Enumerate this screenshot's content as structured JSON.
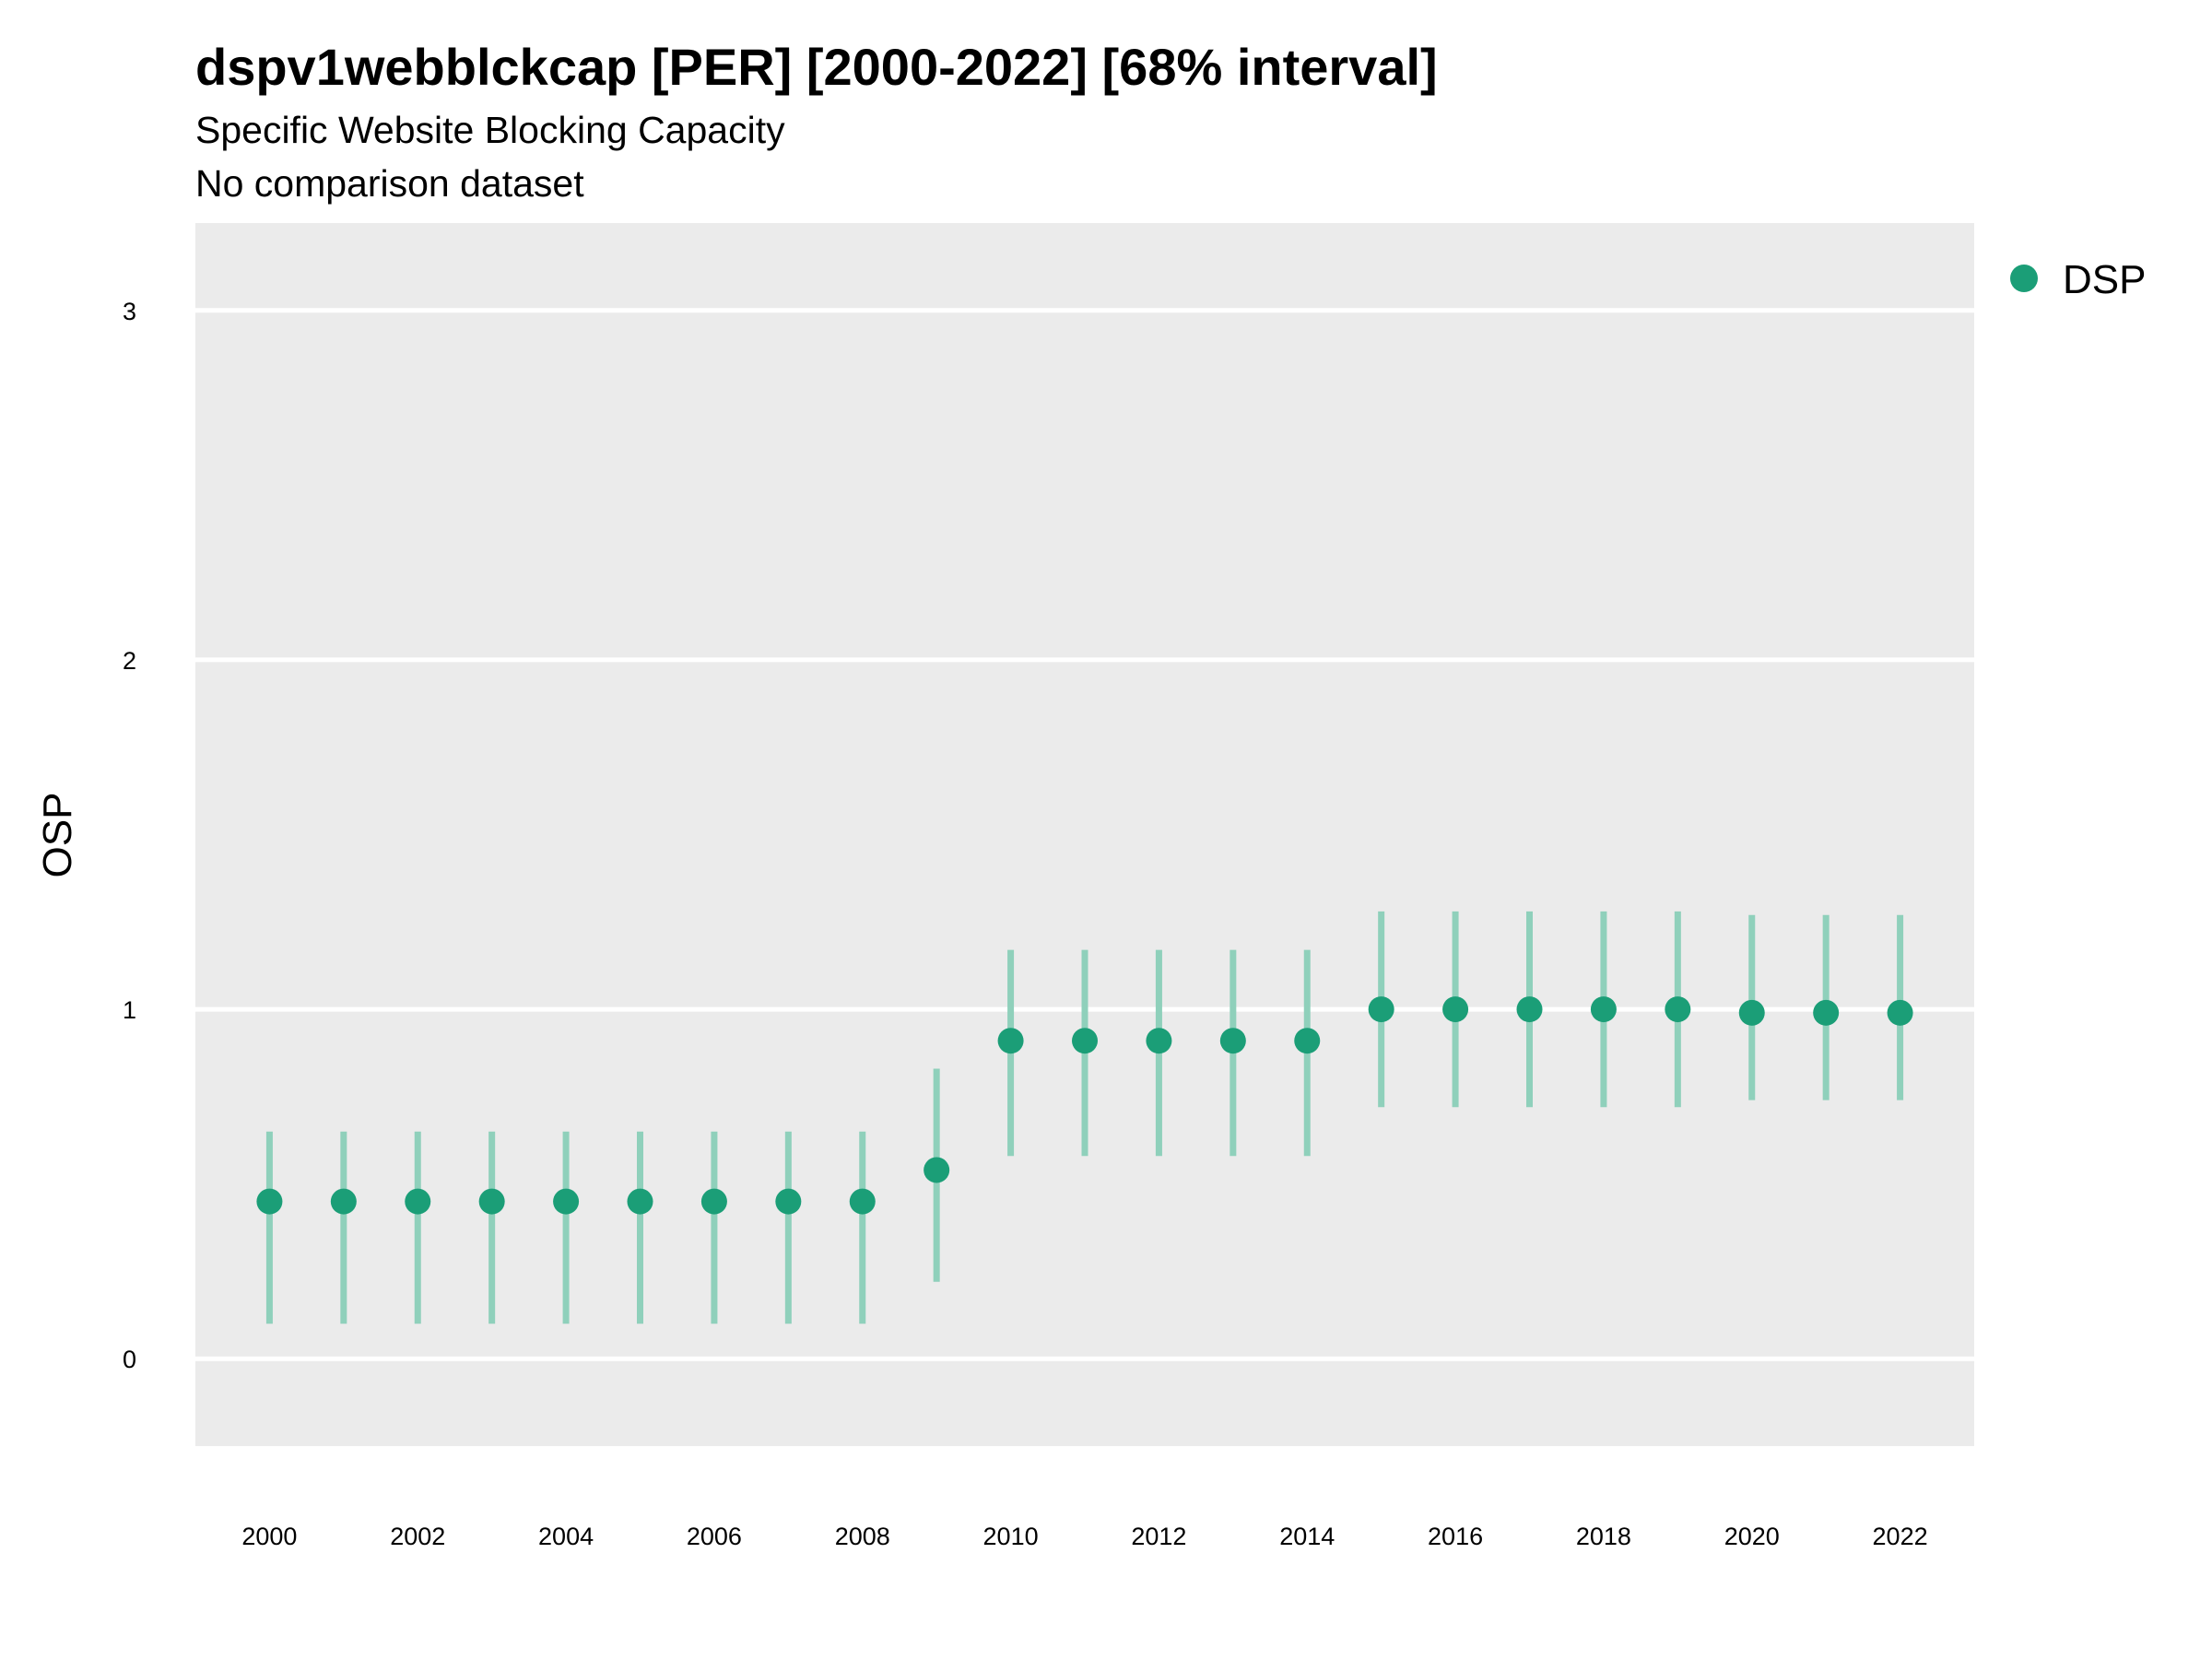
{
  "chart_data": {
    "type": "scatter",
    "title": "dspv1webblckcap [PER] [2000-2022] [68% interval]",
    "subtitle": "Specific Website Blocking Capacity",
    "subtitle2": "No comparison dataset",
    "xlabel": "",
    "ylabel": "OSP",
    "xlim": [
      1999.0,
      2023.0
    ],
    "ylim": [
      -0.25,
      3.25
    ],
    "x_ticks": [
      2000,
      2002,
      2004,
      2006,
      2008,
      2010,
      2012,
      2014,
      2016,
      2018,
      2020,
      2022
    ],
    "y_ticks": [
      0,
      1,
      2,
      3
    ],
    "grid": true,
    "legend_position": "top-right",
    "series": [
      {
        "name": "DSP",
        "color": "#1b9e77",
        "x": [
          2000,
          2001,
          2002,
          2003,
          2004,
          2005,
          2006,
          2007,
          2008,
          2009,
          2010,
          2011,
          2012,
          2013,
          2014,
          2015,
          2016,
          2017,
          2018,
          2019,
          2020,
          2021,
          2022
        ],
        "y": [
          0.45,
          0.45,
          0.45,
          0.45,
          0.45,
          0.45,
          0.45,
          0.45,
          0.45,
          0.54,
          0.91,
          0.91,
          0.91,
          0.91,
          0.91,
          1.0,
          1.0,
          1.0,
          1.0,
          1.0,
          0.99,
          0.99,
          0.99
        ],
        "lower": [
          0.1,
          0.1,
          0.1,
          0.1,
          0.1,
          0.1,
          0.1,
          0.1,
          0.1,
          0.22,
          0.58,
          0.58,
          0.58,
          0.58,
          0.58,
          0.72,
          0.72,
          0.72,
          0.72,
          0.72,
          0.74,
          0.74,
          0.74
        ],
        "upper": [
          0.65,
          0.65,
          0.65,
          0.65,
          0.65,
          0.65,
          0.65,
          0.65,
          0.65,
          0.83,
          1.17,
          1.17,
          1.17,
          1.17,
          1.17,
          1.28,
          1.28,
          1.28,
          1.28,
          1.28,
          1.27,
          1.27,
          1.27
        ]
      }
    ]
  },
  "colors": {
    "panel_background": "#ebebeb",
    "grid": "#ffffff",
    "point": "#1b9e77",
    "interval": "#8fd0bb"
  }
}
